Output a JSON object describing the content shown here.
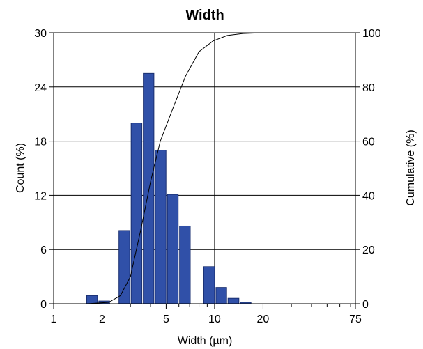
{
  "chart_data": {
    "type": "bar",
    "title": "Width",
    "xlabel": "Width (µm)",
    "ylabel": "Count (%)",
    "y2label": "Cumulative (%)",
    "x_scale": "log",
    "xlim": [
      1,
      75
    ],
    "ylim": [
      0,
      30
    ],
    "y2lim": [
      0,
      100
    ],
    "x_ticks": [
      1,
      2,
      5,
      10,
      20,
      75
    ],
    "x_minor_ticks": [
      3,
      4,
      6,
      7,
      8,
      9,
      30,
      40,
      50,
      60,
      70
    ],
    "y_ticks": [
      0,
      6,
      12,
      18,
      24,
      30
    ],
    "y2_ticks": [
      0,
      20,
      40,
      60,
      80,
      100
    ],
    "grid": true,
    "bar_color": "#3050a8",
    "line_color": "#000000",
    "series": [
      {
        "type": "bar",
        "bins": [
          {
            "x0": 1.59,
            "x1": 1.89,
            "value": 0.9
          },
          {
            "x0": 1.89,
            "x1": 2.25,
            "value": 0.3
          },
          {
            "x0": 2.52,
            "x1": 3.0,
            "value": 8.1
          },
          {
            "x0": 3.0,
            "x1": 3.57,
            "value": 20.0
          },
          {
            "x0": 3.57,
            "x1": 4.24,
            "value": 25.5
          },
          {
            "x0": 4.24,
            "x1": 5.04,
            "value": 17.0
          },
          {
            "x0": 5.04,
            "x1": 6.0,
            "value": 12.1
          },
          {
            "x0": 6.0,
            "x1": 7.13,
            "value": 8.6
          },
          {
            "x0": 7.13,
            "x1": 8.48,
            "value": 0
          },
          {
            "x0": 8.48,
            "x1": 10.1,
            "value": 4.1
          },
          {
            "x0": 10.1,
            "x1": 12.0,
            "value": 1.8
          },
          {
            "x0": 12.0,
            "x1": 14.3,
            "value": 0.6
          },
          {
            "x0": 14.3,
            "x1": 17.0,
            "value": 0.15
          }
        ]
      },
      {
        "type": "line",
        "axis": "right",
        "points": [
          [
            1.6,
            0
          ],
          [
            2.2,
            0.5
          ],
          [
            2.6,
            3
          ],
          [
            3.0,
            10
          ],
          [
            3.5,
            28
          ],
          [
            4.0,
            45
          ],
          [
            4.6,
            60
          ],
          [
            5.5,
            72
          ],
          [
            6.6,
            84
          ],
          [
            8.0,
            93
          ],
          [
            9.8,
            97
          ],
          [
            12,
            99
          ],
          [
            15,
            99.7
          ],
          [
            20,
            100
          ],
          [
            75,
            100
          ]
        ]
      }
    ]
  }
}
